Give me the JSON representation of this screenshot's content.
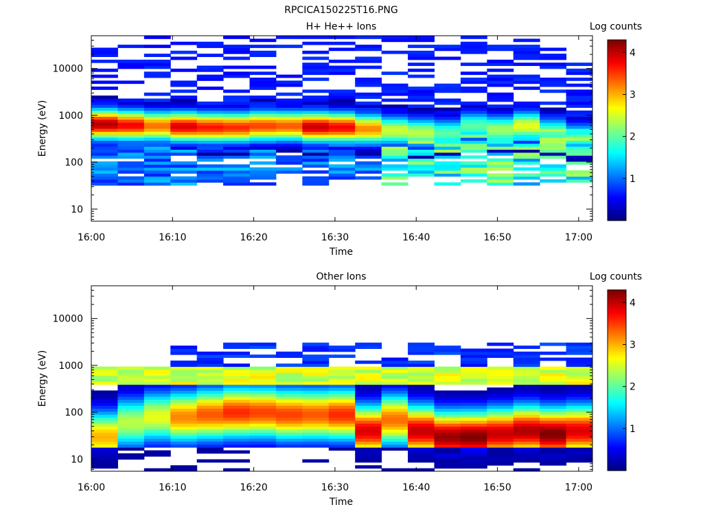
{
  "figure_title": "RPCICA150225T16.PNG",
  "colors": {
    "colormap": [
      "#00007f",
      "#0000ff",
      "#007fff",
      "#00ffff",
      "#7fff7f",
      "#ffff00",
      "#ff7f00",
      "#ff0000",
      "#7f0000"
    ],
    "axis": "#000000",
    "background": "#ffffff"
  },
  "chart_data": [
    {
      "type": "heatmap",
      "title": "H+ He++ Ions",
      "xlabel": "Time",
      "ylabel": "Energy (eV)",
      "yscale": "log",
      "ylim": [
        5.5,
        50000
      ],
      "x_ticks": [
        "16:00",
        "16:10",
        "16:20",
        "16:30",
        "16:40",
        "16:50",
        "17:00"
      ],
      "y_ticks": [
        "10",
        "100",
        "1000",
        "10000"
      ],
      "colorbar": {
        "label": "Log counts",
        "range": [
          0,
          4.3
        ],
        "ticks": [
          "1",
          "2",
          "3",
          "4"
        ]
      },
      "time_bins": [
        "16:00",
        "16:03",
        "16:06",
        "16:10",
        "16:13",
        "16:16",
        "16:19",
        "16:22",
        "16:26",
        "16:29",
        "16:32",
        "16:35",
        "16:38",
        "16:42",
        "16:45",
        "16:48",
        "16:51",
        "16:54",
        "16:58"
      ],
      "max_energy_bins": [
        650,
        620,
        600,
        580,
        560,
        560,
        600,
        600,
        570,
        560,
        520,
        480,
        430,
        420,
        600,
        500,
        600,
        450,
        350
      ],
      "peak_log_counts": [
        4.1,
        3.8,
        3.3,
        3.9,
        3.7,
        3.6,
        3.5,
        3.4,
        4.0,
        3.8,
        3.2,
        2.5,
        2.4,
        2.0,
        2.0,
        2.3,
        2.6,
        2.0,
        1.8
      ]
    },
    {
      "type": "heatmap",
      "title": "Other Ions",
      "xlabel": "Time",
      "ylabel": "Energy (eV)",
      "yscale": "log",
      "ylim": [
        5.5,
        50000
      ],
      "x_ticks": [
        "16:00",
        "16:10",
        "16:20",
        "16:30",
        "16:40",
        "16:50",
        "17:00"
      ],
      "y_ticks": [
        "10",
        "100",
        "1000",
        "10000"
      ],
      "colorbar": {
        "label": "Log counts",
        "range": [
          0,
          4.3
        ],
        "ticks": [
          "1",
          "2",
          "3",
          "4"
        ]
      },
      "time_bins": [
        "16:00",
        "16:03",
        "16:06",
        "16:10",
        "16:13",
        "16:16",
        "16:19",
        "16:22",
        "16:26",
        "16:29",
        "16:32",
        "16:35",
        "16:38",
        "16:42",
        "16:45",
        "16:48",
        "16:51",
        "16:54",
        "16:58"
      ],
      "peak_energy_eV": [
        30,
        60,
        80,
        80,
        90,
        100,
        100,
        90,
        90,
        90,
        40,
        70,
        40,
        30,
        30,
        35,
        40,
        35,
        40
      ],
      "peak_log_counts": [
        3.0,
        2.4,
        2.6,
        3.2,
        3.4,
        3.6,
        3.5,
        3.5,
        3.4,
        3.6,
        3.9,
        3.3,
        4.0,
        4.2,
        4.3,
        4.0,
        4.1,
        4.3,
        3.9
      ]
    }
  ]
}
